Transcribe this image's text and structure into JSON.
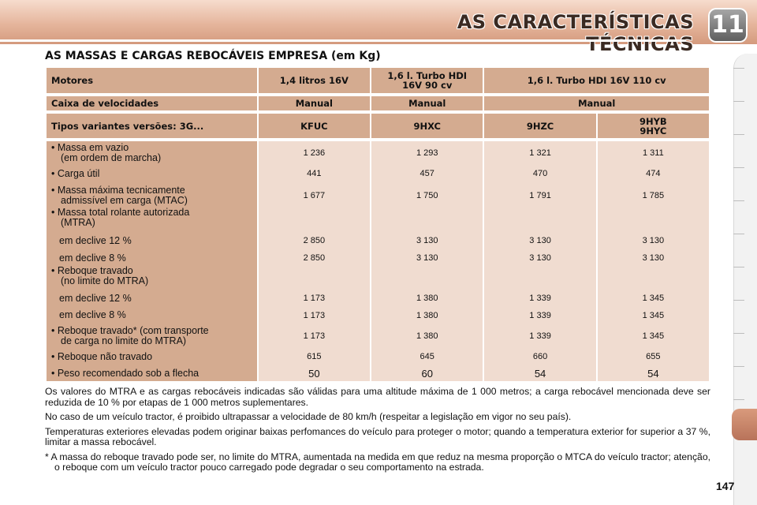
{
  "header": {
    "title": "AS CARACTERÍSTICAS TÉCNICAS",
    "chapter": "11"
  },
  "section_title": "AS MASSAS E CARGAS REBOCÁVEIS EMPRESA (em Kg)",
  "table": {
    "motors_row": {
      "label": "Motores",
      "c1": "1,4 litros 16V",
      "c2_line1": "1,6 l. Turbo HDI",
      "c2_line2": "16V 90 cv",
      "c3": "1,6 l. Turbo HDI 16V 110 cv"
    },
    "gearbox_row": {
      "label": "Caixa de velocidades",
      "c1": "Manual",
      "c2": "Manual",
      "c3": "Manual"
    },
    "variants_row": {
      "label": "Tipos variantes versões: 3G...",
      "c1": "KFUC",
      "c2": "9HXC",
      "c3": "9HZC",
      "c4_line1": "9HYB",
      "c4_line2": "9HYC"
    },
    "rows": [
      {
        "l1": "• Massa em vazio",
        "l2": "(em ordem de marcha)",
        "v": [
          "1 236",
          "1 293",
          "1 321",
          "1 311"
        ]
      },
      {
        "l1": "• Carga útil",
        "l2": "",
        "v": [
          "441",
          "457",
          "470",
          "474"
        ]
      },
      {
        "l1": "• Massa máxima tecnicamente",
        "l2": "admissível em carga (MTAC)",
        "v": [
          "1 677",
          "1 750",
          "1 791",
          "1 785"
        ]
      },
      {
        "l1": "• Massa total rolante autorizada",
        "l2": "(MTRA)",
        "v": [
          "",
          "",
          "",
          ""
        ]
      },
      {
        "l1": "em declive 12 %",
        "l2": "",
        "v": [
          "2 850",
          "3 130",
          "3 130",
          "3 130"
        ]
      },
      {
        "l1": "em declive 8 %",
        "l2": "",
        "v": [
          "2 850",
          "3 130",
          "3 130",
          "3 130"
        ]
      },
      {
        "l1": "• Reboque travado",
        "l2": "(no limite do MTRA)",
        "v": [
          "",
          "",
          "",
          ""
        ]
      },
      {
        "l1": "em declive 12 %",
        "l2": "",
        "v": [
          "1 173",
          "1 380",
          "1 339",
          "1 345"
        ]
      },
      {
        "l1": "em declive 8 %",
        "l2": "",
        "v": [
          "1 173",
          "1 380",
          "1 339",
          "1 345"
        ]
      },
      {
        "l1": "• Reboque travado* (com transporte",
        "l2": "de carga no limite do MTRA)",
        "v": [
          "1 173",
          "1 380",
          "1 339",
          "1 345"
        ]
      },
      {
        "l1": "• Reboque não travado",
        "l2": "",
        "v": [
          "615",
          "645",
          "660",
          "655"
        ]
      },
      {
        "l1": "• Peso recomendado sob a flecha",
        "l2": "",
        "v": [
          "50",
          "60",
          "54",
          "54"
        ]
      }
    ]
  },
  "notes": {
    "p1": "Os valores do MTRA e as cargas rebocáveis indicadas são válidas para uma altitude máxima de 1 000 metros; a carga rebocável mencionada deve ser reduzida de 10 % por etapas de 1 000 metros suplementares.",
    "p2": "No caso de um veículo tractor, é proibido ultrapassar a velocidade de 80 km/h (respeitar a legislação em vigor no seu país).",
    "p3": "Temperaturas exteriores elevadas podem originar baixas perfomances do veículo para proteger o motor; quando a temperatura exterior for superior a 37 %, limitar a massa rebocável.",
    "p4": "* A massa do reboque travado pode ser, no limite do MTRA, aumentada na medida em que reduz na mesma proporção o MTCA do veículo tractor; atenção, o reboque com um veículo tractor pouco carregado pode degradar o seu comportamento na estrada."
  },
  "page_number": "147"
}
